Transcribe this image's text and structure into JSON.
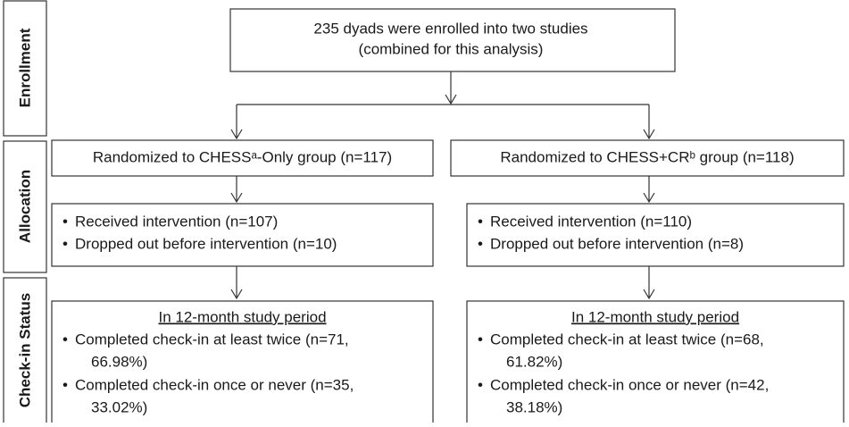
{
  "stages": [
    "Enrollment",
    "Allocation",
    "Check-in Status"
  ],
  "enrollment": {
    "lines": [
      "235 dyads were enrolled into two studies",
      "(combined for this analysis)"
    ]
  },
  "arms": [
    {
      "allocation": "Randomized to CHESSᵃ-Only group (n=117)",
      "intervention": [
        "Received intervention (n=107)",
        "Dropped out before intervention (n=10)"
      ],
      "checkin": {
        "heading": "In 12-month study period",
        "items": [
          [
            "Completed check-in at least twice (n=71,",
            "66.98%)"
          ],
          [
            "Completed check-in once or never (n=35,",
            "33.02%)"
          ]
        ]
      }
    },
    {
      "allocation": "Randomized to CHESS+CRᵇ group (n=118)",
      "intervention": [
        "Received intervention (n=110)",
        "Dropped out before intervention (n=8)"
      ],
      "checkin": {
        "heading": "In 12-month study period",
        "items": [
          [
            "Completed check-in at least twice (n=68,",
            "61.82%)"
          ],
          [
            "Completed check-in once or never (n=42,",
            "38.18%)"
          ]
        ]
      }
    }
  ]
}
